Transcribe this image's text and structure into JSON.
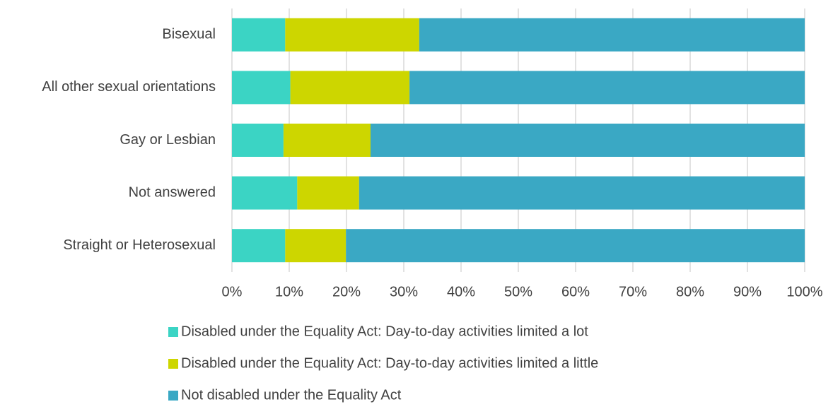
{
  "chart_data": {
    "type": "stacked_barh",
    "categories": [
      "Bisexual",
      "All other sexual orientations",
      "Gay or Lesbian",
      "Not answered",
      "Straight or Heterosexual"
    ],
    "series": [
      {
        "name": "Disabled under the Equality Act: Day-to-day activities limited a lot",
        "color": "#3bd4c4",
        "values": [
          9.3,
          10.2,
          9.0,
          11.4,
          9.3
        ]
      },
      {
        "name": "Disabled under the Equality Act: Day-to-day activities limited a little",
        "color": "#cdd600",
        "values": [
          23.4,
          20.8,
          15.2,
          10.8,
          10.6
        ]
      },
      {
        "name": "Not disabled under the Equality Act",
        "color": "#3aa8c4",
        "values": [
          67.3,
          69.0,
          75.8,
          77.8,
          80.1
        ]
      }
    ],
    "xlim": [
      0,
      100
    ],
    "xticks": [
      {
        "value": 0,
        "label": "0%"
      },
      {
        "value": 10,
        "label": "10%"
      },
      {
        "value": 20,
        "label": "20%"
      },
      {
        "value": 30,
        "label": "30%"
      },
      {
        "value": 40,
        "label": "40%"
      },
      {
        "value": 50,
        "label": "50%"
      },
      {
        "value": 60,
        "label": "60%"
      },
      {
        "value": 70,
        "label": "70%"
      },
      {
        "value": 80,
        "label": "80%"
      },
      {
        "value": 90,
        "label": "90%"
      },
      {
        "value": 100,
        "label": "100%"
      }
    ],
    "grid": true,
    "legend": "bottom"
  }
}
